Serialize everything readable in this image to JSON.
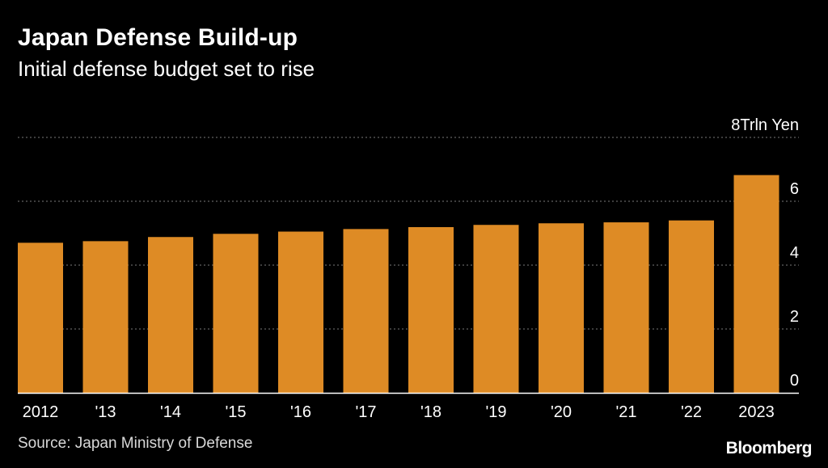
{
  "title": "Japan Defense Build-up",
  "subtitle": "Initial defense budget set to rise",
  "source": "Source: Japan Ministry of Defense",
  "brand": "Bloomberg",
  "colors": {
    "background": "#000000",
    "bar": "#de8b25",
    "grid": "#7a7a7a",
    "text": "#ffffff",
    "source_text": "#d9d9d9"
  },
  "chart_data": {
    "type": "bar",
    "categories": [
      "2012",
      "'13",
      "'14",
      "'15",
      "'16",
      "'17",
      "'18",
      "'19",
      "'20",
      "'21",
      "'22",
      "2023"
    ],
    "series": [
      {
        "values": [
          4.7,
          4.75,
          4.88,
          4.98,
          5.05,
          5.13,
          5.19,
          5.26,
          5.31,
          5.34,
          5.4,
          6.82
        ]
      }
    ],
    "ylim": [
      0,
      8
    ],
    "yticks": [
      0,
      2,
      4,
      6,
      8
    ],
    "ytick_labels": [
      "0",
      "2",
      "4",
      "6",
      "8Trln Yen"
    ],
    "grid": true,
    "grid_style": "dotted",
    "yaxis_position": "right"
  }
}
